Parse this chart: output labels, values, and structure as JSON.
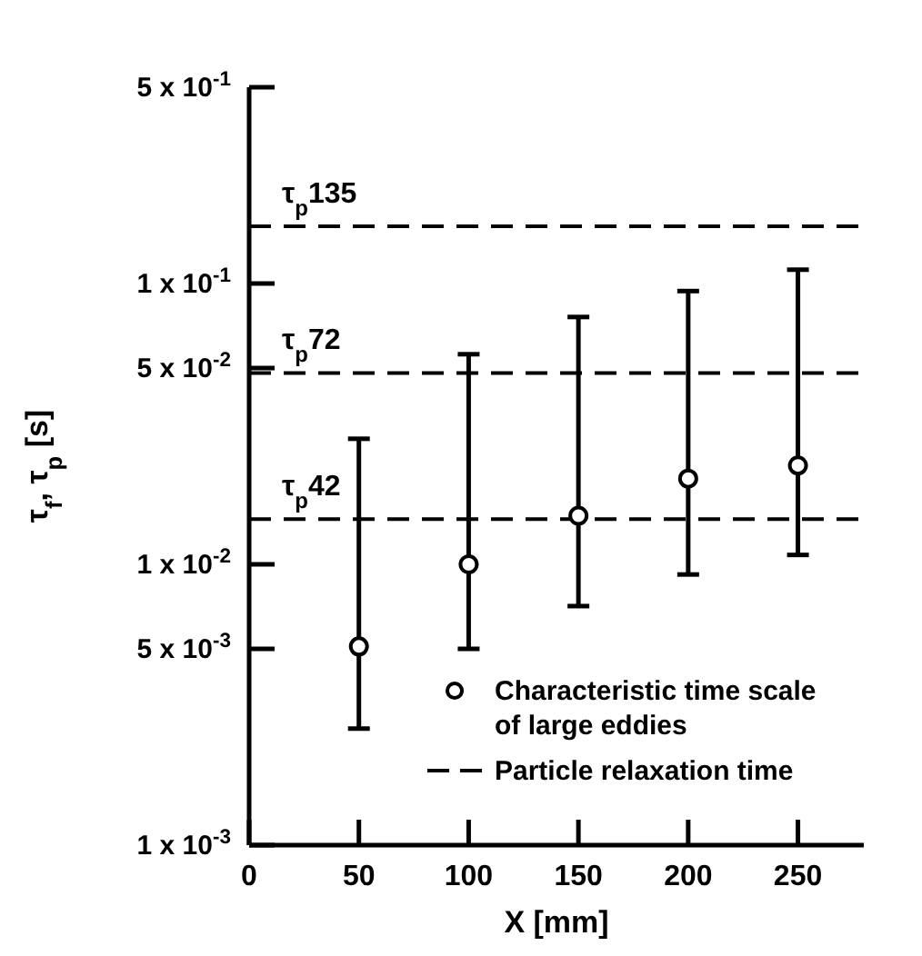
{
  "chart_data": {
    "type": "scatter",
    "xlabel": "X [mm]",
    "ylabel": "τ$_{f}$, τ$_{p}$ [s]",
    "x": [
      50,
      100,
      150,
      200,
      250
    ],
    "series": [
      {
        "name": "Characteristic time scale of large eddies",
        "color": "#000000",
        "values": [
          0.0051,
          0.01,
          0.0149,
          0.0202,
          0.0225
        ],
        "errors": [
          [
            0.0026,
            0.028
          ],
          [
            0.005,
            0.056
          ],
          [
            0.0071,
            0.076
          ],
          [
            0.0092,
            0.094
          ],
          [
            0.0108,
            0.112
          ]
        ]
      }
    ],
    "ref_lines": [
      {
        "axis": "y",
        "value": 0.16,
        "label": "τ$_{p}$135",
        "line_style": "dashed",
        "color": "#000000"
      },
      {
        "axis": "y",
        "value": 0.048,
        "label": "τ$_{p}$72",
        "line_style": "dashed",
        "color": "#000000"
      },
      {
        "axis": "y",
        "value": 0.0145,
        "label": "τ$_{p}$42",
        "line_style": "dashed",
        "color": "#000000"
      }
    ],
    "annotations": [
      "Particle relaxation time"
    ],
    "xlim": [
      0,
      280
    ],
    "xticks": [
      0,
      50,
      100,
      150,
      200,
      250
    ],
    "ylim": [
      0.001,
      0.5
    ],
    "yticks": [
      {
        "value": 0.001,
        "label": "1 x 10$^{-3}$"
      },
      {
        "value": 0.005,
        "label": "5 x 10$^{-3}$"
      },
      {
        "value": 0.01,
        "label": "1 x 10$^{-2}$"
      },
      {
        "value": 0.05,
        "label": "5 x 10$^{-2}$"
      },
      {
        "value": 0.1,
        "label": "1 x 10$^{-1}$"
      },
      {
        "value": 0.5,
        "label": "5 x 10$^{-1}$"
      }
    ],
    "log": "y",
    "marker": "circle",
    "legend": "bottom right",
    "grid": false
  }
}
